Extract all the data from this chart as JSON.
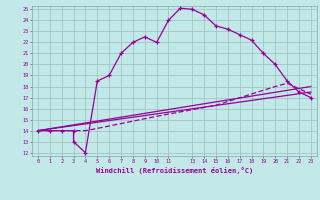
{
  "xlabel": "Windchill (Refroidissement éolien,°C)",
  "xlim": [
    -0.5,
    23.5
  ],
  "ylim": [
    11.7,
    25.3
  ],
  "bg_color": "#c2e8e8",
  "line_color": "#990099",
  "grid_color": "#9bbfbf",
  "series1_x": [
    0,
    1,
    2,
    3,
    3,
    4,
    5,
    6,
    7,
    8,
    9,
    10,
    11,
    12,
    13,
    14,
    15,
    16,
    17,
    18,
    19,
    20,
    21,
    22,
    23
  ],
  "series1_y": [
    14,
    14,
    14,
    14,
    13,
    12,
    18.5,
    19,
    21,
    22,
    22.5,
    22,
    24,
    25.1,
    25.0,
    24.5,
    23.5,
    23.2,
    22.7,
    22.2,
    21.0,
    20.0,
    18.5,
    17.5,
    17.0
  ],
  "series2_x": [
    0,
    23
  ],
  "series2_y": [
    14.0,
    17.5
  ],
  "series3_x": [
    0,
    23
  ],
  "series3_y": [
    14.0,
    18.0
  ],
  "series4_x": [
    0,
    4,
    5,
    10,
    15,
    20,
    21,
    22,
    23
  ],
  "series4_y": [
    14.0,
    14.0,
    14.2,
    15.3,
    16.3,
    18.0,
    18.3,
    17.8,
    17.3
  ],
  "ytick_vals": [
    12,
    13,
    14,
    15,
    16,
    17,
    18,
    19,
    20,
    21,
    22,
    23,
    24,
    25
  ],
  "xtick_vals": [
    0,
    1,
    2,
    3,
    4,
    5,
    6,
    7,
    8,
    9,
    10,
    11,
    13,
    14,
    15,
    16,
    17,
    18,
    19,
    20,
    21,
    22,
    23
  ]
}
